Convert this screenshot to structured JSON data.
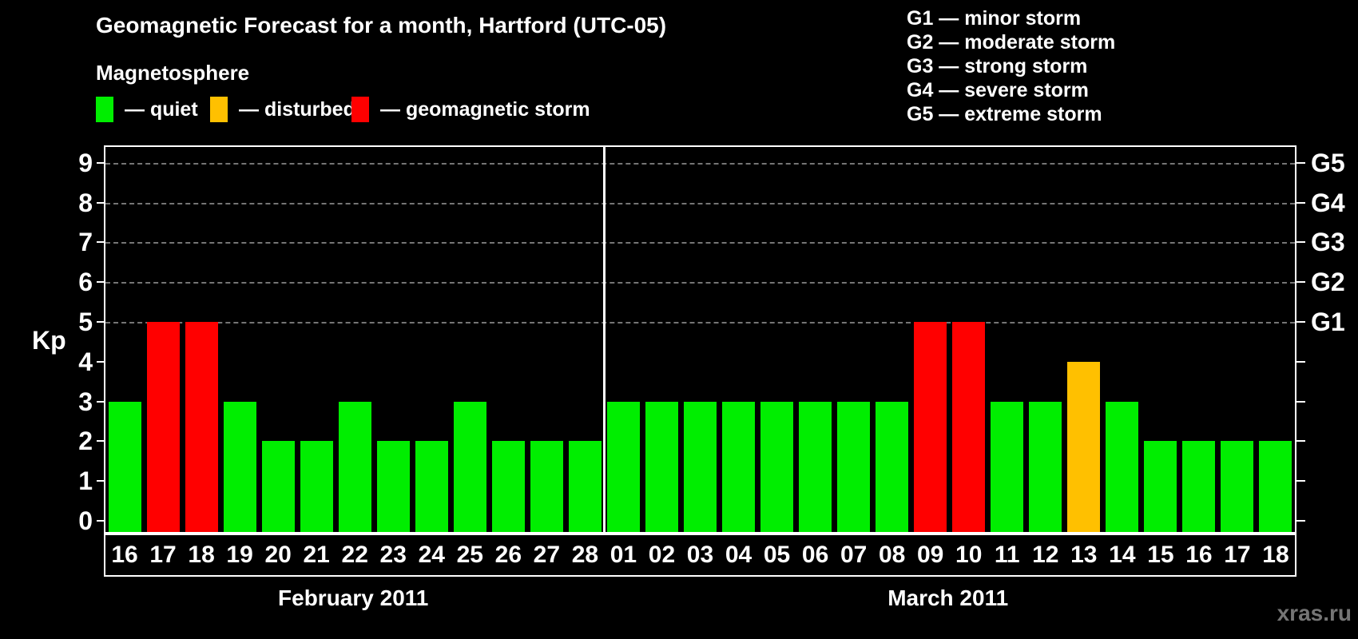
{
  "title": "Geomagnetic Forecast for a month, Hartford (UTC-05)",
  "watermark": "xras.ru",
  "magnetosphere": {
    "heading": "Magnetosphere",
    "items": [
      {
        "name": "quiet",
        "label": "— quiet",
        "color": "#00ee00"
      },
      {
        "name": "disturbed",
        "label": "— disturbed",
        "color": "#ffc000"
      },
      {
        "name": "storm",
        "label": "— geomagnetic storm",
        "color": "#ff0000"
      }
    ]
  },
  "storm_scale": {
    "lines": [
      "G1 — minor storm",
      "G2 — moderate storm",
      "G3 — strong storm",
      "G4 — severe storm",
      "G5 — extreme storm"
    ]
  },
  "axes": {
    "y_label": "Kp",
    "y_ticks": [
      "0",
      "1",
      "2",
      "3",
      "4",
      "5",
      "6",
      "7",
      "8",
      "9"
    ],
    "right_labels": [
      {
        "kp": 5,
        "label": "G1"
      },
      {
        "kp": 6,
        "label": "G2"
      },
      {
        "kp": 7,
        "label": "G3"
      },
      {
        "kp": 8,
        "label": "G4"
      },
      {
        "kp": 9,
        "label": "G5"
      }
    ]
  },
  "chart_data": {
    "type": "bar",
    "title": "Geomagnetic Forecast for a month, Hartford (UTC-05)",
    "ylabel": "Kp",
    "ylim": [
      0,
      9
    ],
    "grid": "dashed horizontal lines at Kp 5-9 only",
    "gridlines_at": [
      5,
      6,
      7,
      8,
      9
    ],
    "legend_position": "top-left and top-right",
    "colors": {
      "quiet": "#00ee00",
      "disturbed": "#ffc000",
      "storm": "#ff0000"
    },
    "color_rule": "kp<4 quiet(green); kp=4 disturbed(orange); kp>=5 storm(red)",
    "months": [
      {
        "label": "February 2011",
        "days": [
          "16",
          "17",
          "18",
          "19",
          "20",
          "21",
          "22",
          "23",
          "24",
          "25",
          "26",
          "27",
          "28"
        ],
        "kp": [
          3,
          5,
          5,
          3,
          2,
          2,
          3,
          2,
          2,
          3,
          2,
          2,
          2
        ]
      },
      {
        "label": "March 2011",
        "days": [
          "01",
          "02",
          "03",
          "04",
          "05",
          "06",
          "07",
          "08",
          "09",
          "10",
          "11",
          "12",
          "13",
          "14",
          "15",
          "16",
          "17",
          "18"
        ],
        "kp": [
          3,
          3,
          3,
          3,
          3,
          3,
          3,
          3,
          5,
          5,
          3,
          3,
          4,
          3,
          2,
          2,
          2,
          2
        ]
      }
    ]
  }
}
